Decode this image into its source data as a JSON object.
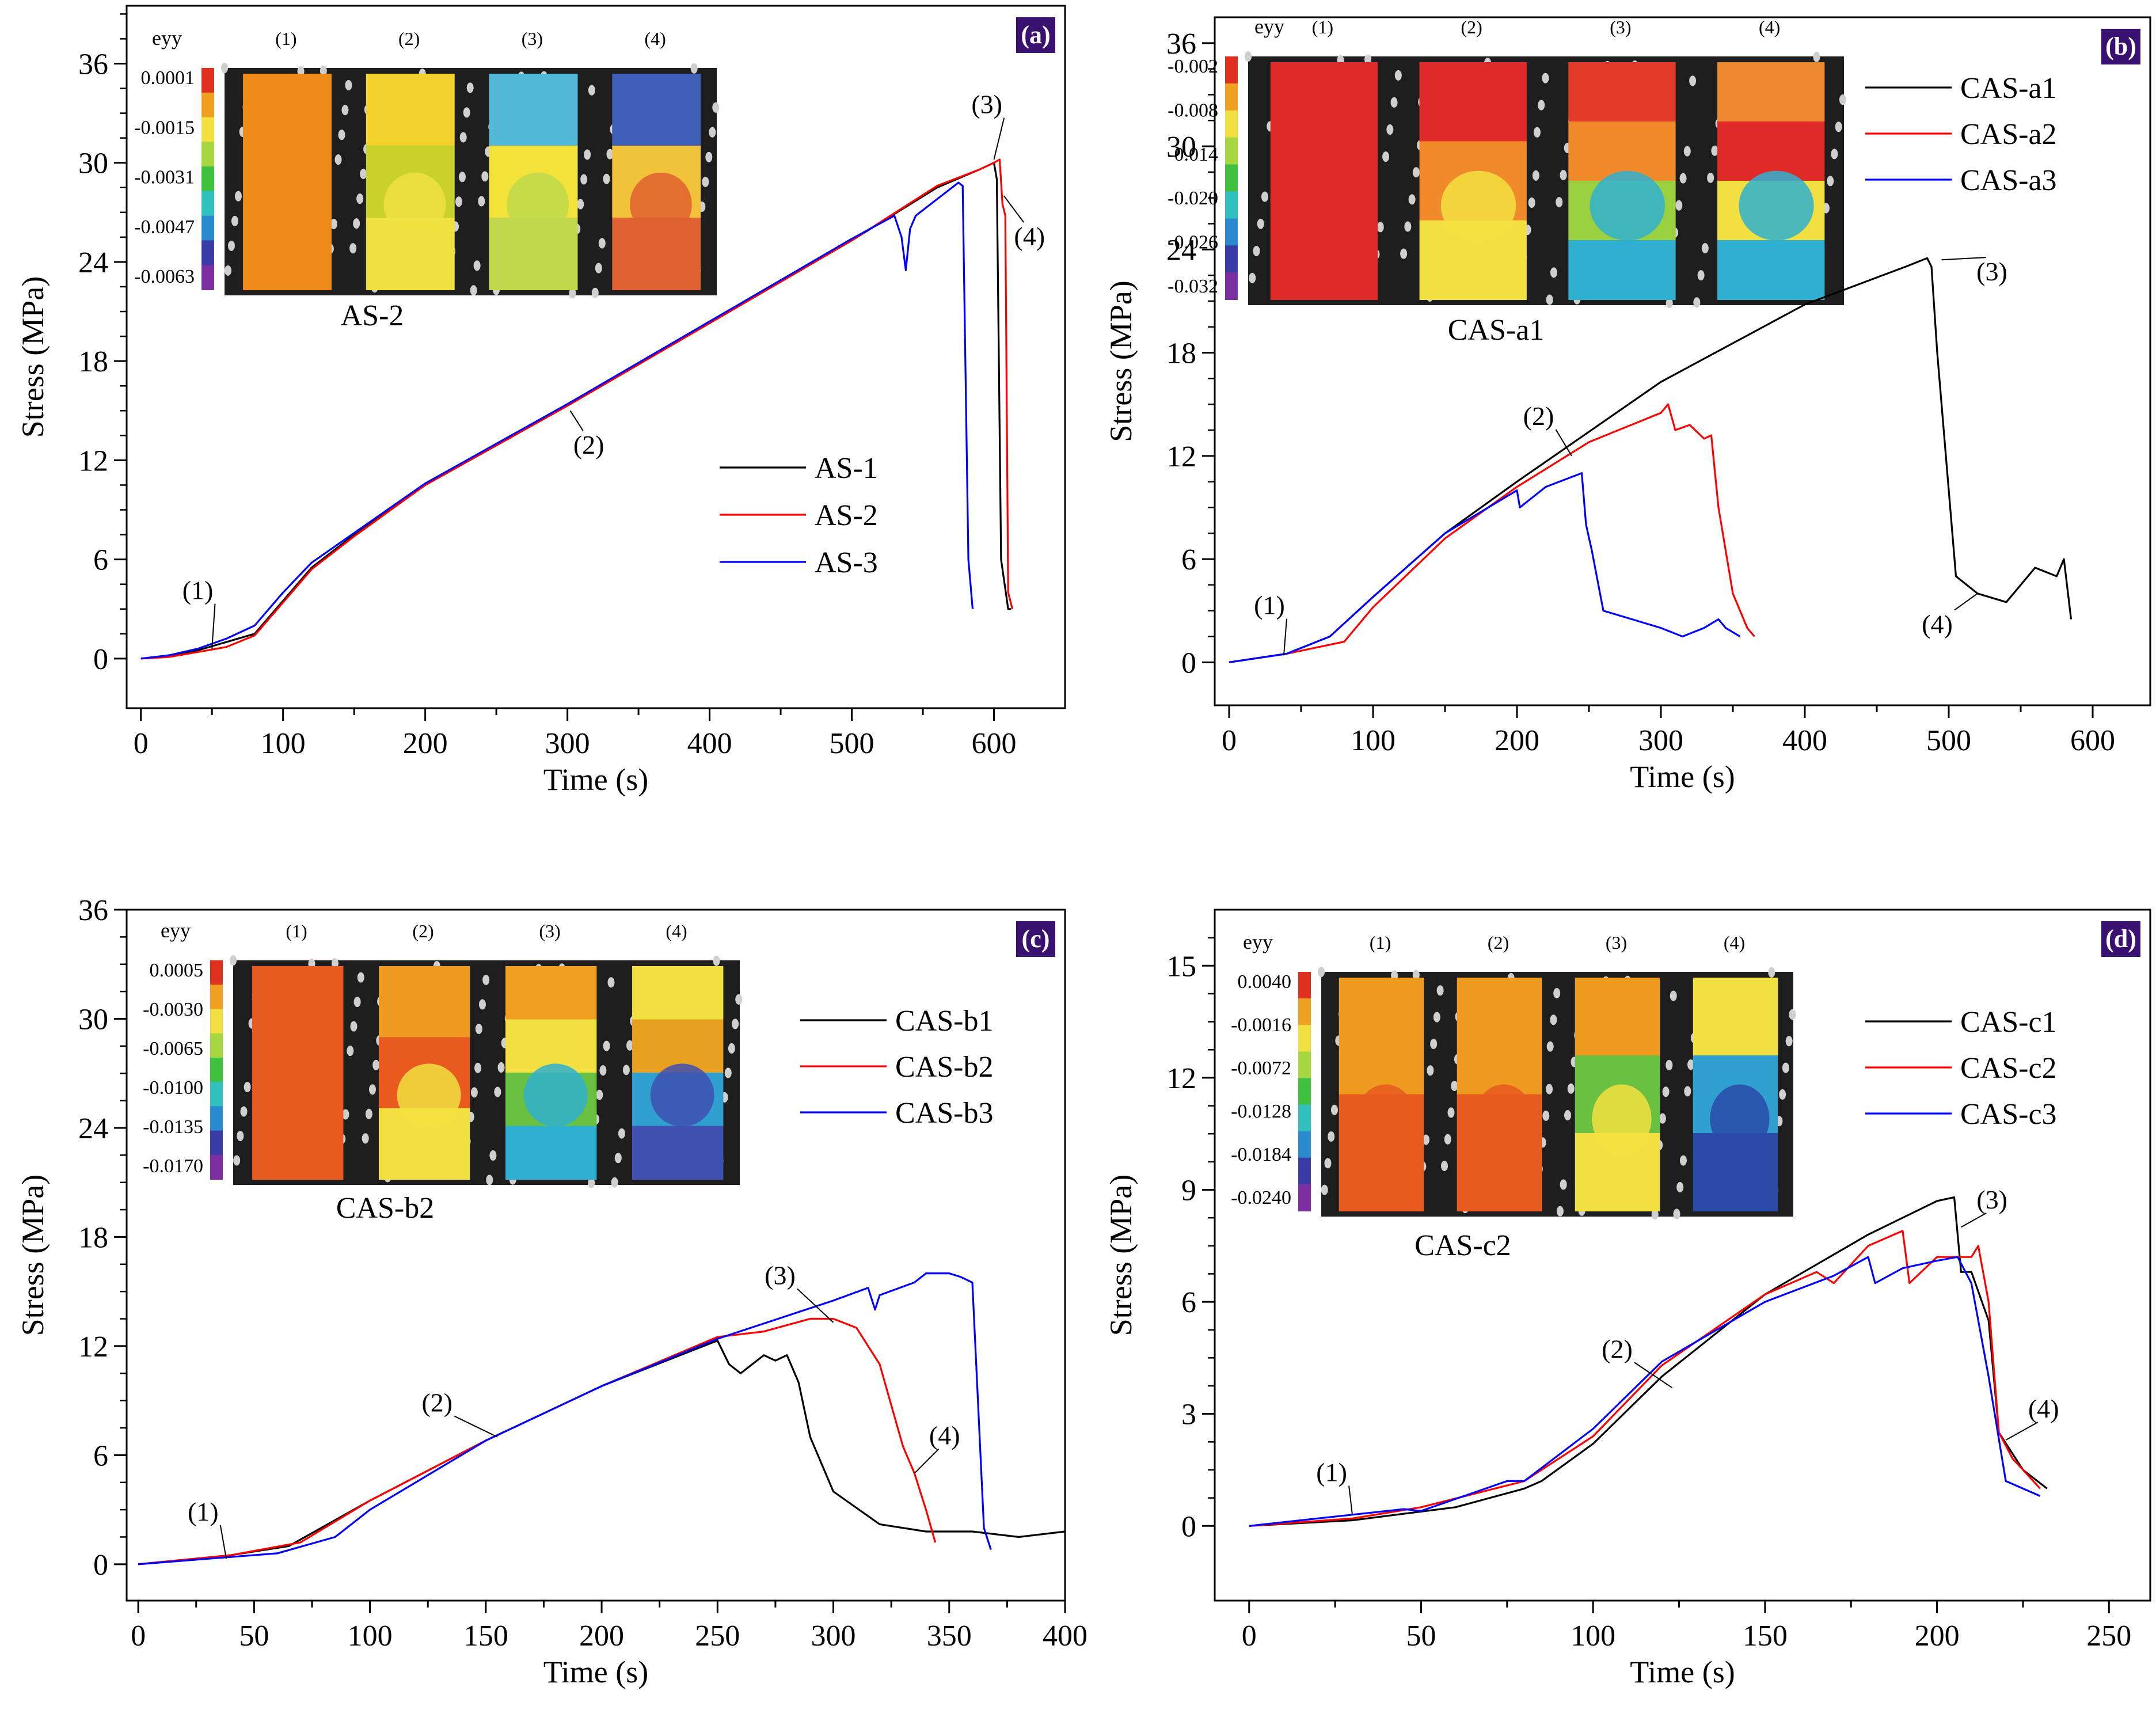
{
  "chart_data": [
    {
      "type": "line",
      "panel_label": "(a)",
      "xlabel": "Time (s)",
      "ylabel": "Stress (MPa)",
      "xlim": [
        -10,
        650
      ],
      "ylim": [
        -3,
        39.5
      ],
      "xticks": [
        0,
        100,
        200,
        300,
        400,
        500,
        600
      ],
      "yticks": [
        0,
        6,
        12,
        18,
        24,
        30,
        36
      ],
      "series": [
        {
          "name": "AS-1",
          "color": "#000000",
          "x": [
            0,
            20,
            40,
            60,
            80,
            100,
            120,
            150,
            200,
            300,
            400,
            500,
            560,
            590,
            600,
            602,
            605,
            610,
            612
          ],
          "y": [
            0,
            0.2,
            0.5,
            1.0,
            1.5,
            3.5,
            5.5,
            7.5,
            10.5,
            15.3,
            20.3,
            25.3,
            28.5,
            29.6,
            30.0,
            29.0,
            6.0,
            3.0,
            3.0
          ]
        },
        {
          "name": "AS-2",
          "color": "#ff0000",
          "x": [
            0,
            20,
            40,
            60,
            80,
            100,
            120,
            150,
            200,
            300,
            400,
            500,
            560,
            590,
            600,
            604,
            606,
            608,
            610,
            613
          ],
          "y": [
            0,
            0.1,
            0.4,
            0.7,
            1.4,
            3.4,
            5.4,
            7.4,
            10.5,
            15.3,
            20.3,
            25.3,
            28.6,
            29.6,
            30.0,
            30.2,
            27.5,
            26.8,
            4.0,
            3.0
          ]
        },
        {
          "name": "AS-3",
          "color": "#0000ff",
          "x": [
            0,
            20,
            40,
            60,
            80,
            100,
            120,
            150,
            200,
            300,
            400,
            500,
            530,
            535,
            538,
            541,
            545,
            560,
            575,
            578,
            582,
            585
          ],
          "y": [
            0,
            0.2,
            0.6,
            1.2,
            2.0,
            4.0,
            5.8,
            7.6,
            10.6,
            15.4,
            20.4,
            25.4,
            26.8,
            25.5,
            23.5,
            26.0,
            26.8,
            27.8,
            28.8,
            28.6,
            6.0,
            3.0
          ]
        }
      ],
      "annotations": [
        {
          "text": "(1)",
          "x": 40,
          "y": 3.6,
          "tx": 50,
          "ty": 0.6
        },
        {
          "text": "(2)",
          "x": 315,
          "y": 12.4,
          "tx": 302,
          "ty": 15.0
        },
        {
          "text": "(3)",
          "x": 595,
          "y": 33.0,
          "tx": 600,
          "ty": 30.2
        },
        {
          "text": "(4)",
          "x": 625,
          "y": 25.0,
          "tx": 607,
          "ty": 28.0
        }
      ],
      "inset": {
        "caption": "AS-2",
        "scale_title": "eyy",
        "scale_values": [
          "0.0001",
          "-0.0015",
          "-0.0031",
          "-0.0047",
          "-0.0063"
        ],
        "stage_labels": [
          "(1)",
          "(2)",
          "(3)",
          "(4)"
        ]
      }
    },
    {
      "type": "line",
      "panel_label": "(b)",
      "xlabel": "Time (s)",
      "ylabel": "Stress (MPa)",
      "xlim": [
        -10,
        640
      ],
      "ylim": [
        -2.5,
        37.5
      ],
      "xticks": [
        0,
        100,
        200,
        300,
        400,
        500,
        600
      ],
      "yticks": [
        0,
        6,
        12,
        18,
        24,
        30,
        36
      ],
      "series": [
        {
          "name": "CAS-a1",
          "color": "#000000",
          "x": [
            0,
            40,
            70,
            100,
            150,
            200,
            300,
            400,
            470,
            485,
            488,
            492,
            500,
            505,
            520,
            540,
            560,
            575,
            580,
            585
          ],
          "y": [
            0,
            0.5,
            1.5,
            3.8,
            7.5,
            10.5,
            16.3,
            20.8,
            23.0,
            23.5,
            23.0,
            18.0,
            10.0,
            5.0,
            4.0,
            3.5,
            5.5,
            5.0,
            6.0,
            2.5
          ]
        },
        {
          "name": "CAS-a2",
          "color": "#ff0000",
          "x": [
            0,
            40,
            80,
            100,
            150,
            200,
            250,
            300,
            305,
            310,
            320,
            330,
            335,
            340,
            350,
            360,
            365
          ],
          "y": [
            0,
            0.5,
            1.2,
            3.2,
            7.2,
            10.2,
            12.8,
            14.5,
            15.0,
            13.5,
            13.8,
            13.0,
            13.2,
            9.0,
            4.0,
            2.0,
            1.5
          ]
        },
        {
          "name": "CAS-a3",
          "color": "#0000ff",
          "x": [
            0,
            40,
            70,
            100,
            150,
            200,
            202,
            220,
            245,
            248,
            252,
            260,
            280,
            300,
            315,
            330,
            340,
            345,
            355
          ],
          "y": [
            0,
            0.5,
            1.5,
            3.8,
            7.5,
            10.0,
            9.0,
            10.2,
            11.0,
            8.0,
            6.5,
            3.0,
            2.5,
            2.0,
            1.5,
            2.0,
            2.5,
            2.0,
            1.5
          ]
        }
      ],
      "annotations": [
        {
          "text": "(1)",
          "x": 28,
          "y": 2.8,
          "tx": 38,
          "ty": 0.4
        },
        {
          "text": "(2)",
          "x": 215,
          "y": 13.8,
          "tx": 238,
          "ty": 12.0
        },
        {
          "text": "(3)",
          "x": 530,
          "y": 22.2,
          "tx": 495,
          "ty": 23.4
        },
        {
          "text": "(4)",
          "x": 492,
          "y": 1.7,
          "tx": 520,
          "ty": 4.0
        }
      ],
      "inset": {
        "caption": "CAS-a1",
        "scale_title": "eyy",
        "scale_values": [
          "-0.002",
          "-0.008",
          "-0.014",
          "-0.020",
          "-0.026",
          "-0.032"
        ],
        "stage_labels": [
          "(1)",
          "(2)",
          "(3)",
          "(4)"
        ]
      }
    },
    {
      "type": "line",
      "panel_label": "(c)",
      "xlabel": "Time (s)",
      "ylabel": "Stress (MPa)",
      "xlim": [
        -5,
        400
      ],
      "ylim": [
        -2.0,
        36
      ],
      "xticks": [
        0,
        50,
        100,
        150,
        200,
        250,
        300,
        350,
        400
      ],
      "yticks": [
        0,
        6,
        12,
        18,
        24,
        30,
        36
      ],
      "series": [
        {
          "name": "CAS-b1",
          "color": "#000000",
          "x": [
            0,
            40,
            65,
            100,
            150,
            200,
            250,
            255,
            260,
            270,
            275,
            280,
            285,
            290,
            300,
            320,
            340,
            360,
            380,
            400
          ],
          "y": [
            0,
            0.5,
            1.0,
            3.5,
            6.8,
            9.8,
            12.3,
            11.0,
            10.5,
            11.5,
            11.2,
            11.5,
            10.0,
            7.0,
            4.0,
            2.2,
            1.8,
            1.8,
            1.5,
            1.8
          ]
        },
        {
          "name": "CAS-b2",
          "color": "#ff0000",
          "x": [
            0,
            40,
            70,
            100,
            150,
            200,
            250,
            270,
            290,
            300,
            310,
            320,
            330,
            335,
            340,
            344
          ],
          "y": [
            0,
            0.5,
            1.2,
            3.5,
            6.8,
            9.8,
            12.5,
            12.8,
            13.5,
            13.5,
            13.0,
            11.0,
            6.5,
            5.0,
            3.0,
            1.2
          ]
        },
        {
          "name": "CAS-b3",
          "color": "#0000ff",
          "x": [
            0,
            40,
            60,
            85,
            100,
            150,
            200,
            250,
            300,
            315,
            318,
            320,
            335,
            340,
            350,
            355,
            360,
            365,
            368
          ],
          "y": [
            0,
            0.4,
            0.6,
            1.5,
            3.0,
            6.8,
            9.8,
            12.4,
            14.5,
            15.2,
            14.0,
            14.8,
            15.5,
            16.0,
            16.0,
            15.8,
            15.5,
            2.0,
            0.8
          ]
        }
      ],
      "annotations": [
        {
          "text": "(1)",
          "x": 28,
          "y": 2.4,
          "tx": 38,
          "ty": 0.3
        },
        {
          "text": "(2)",
          "x": 129,
          "y": 8.4,
          "tx": 155,
          "ty": 7.0
        },
        {
          "text": "(3)",
          "x": 277,
          "y": 15.4,
          "tx": 300,
          "ty": 13.3
        },
        {
          "text": "(4)",
          "x": 348,
          "y": 6.6,
          "tx": 335,
          "ty": 5.0
        }
      ],
      "inset": {
        "caption": "CAS-b2",
        "scale_title": "eyy",
        "scale_values": [
          "0.0005",
          "-0.0030",
          "-0.0065",
          "-0.0100",
          "-0.0135",
          "-0.0170"
        ],
        "stage_labels": [
          "(1)",
          "(2)",
          "(3)",
          "(4)"
        ]
      }
    },
    {
      "type": "line",
      "panel_label": "(d)",
      "xlabel": "Time (s)",
      "ylabel": "Stress (MPa)",
      "xlim": [
        -10,
        262
      ],
      "ylim": [
        -2.0,
        16.5
      ],
      "xticks": [
        0,
        50,
        100,
        150,
        200,
        250
      ],
      "yticks": [
        0,
        3,
        6,
        9,
        12,
        15
      ],
      "series": [
        {
          "name": "CAS-c1",
          "color": "#000000",
          "x": [
            0,
            30,
            60,
            80,
            85,
            100,
            120,
            150,
            180,
            200,
            205,
            207,
            210,
            215,
            218,
            225,
            232
          ],
          "y": [
            0,
            0.15,
            0.5,
            1.0,
            1.2,
            2.2,
            4.0,
            6.2,
            7.8,
            8.7,
            8.8,
            6.8,
            6.8,
            5.5,
            2.5,
            1.5,
            1.0
          ]
        },
        {
          "name": "CAS-c2",
          "color": "#ff0000",
          "x": [
            0,
            30,
            50,
            80,
            100,
            120,
            150,
            165,
            170,
            180,
            190,
            192,
            200,
            210,
            212,
            215,
            218,
            222,
            230
          ],
          "y": [
            0,
            0.2,
            0.5,
            1.2,
            2.4,
            4.3,
            6.2,
            6.8,
            6.5,
            7.5,
            7.9,
            6.5,
            7.2,
            7.2,
            7.5,
            6.0,
            2.5,
            1.8,
            1.0
          ]
        },
        {
          "name": "CAS-c3",
          "color": "#0000ff",
          "x": [
            0,
            30,
            45,
            50,
            75,
            80,
            100,
            120,
            150,
            170,
            180,
            182,
            190,
            200,
            206,
            210,
            215,
            220,
            230
          ],
          "y": [
            0,
            0.3,
            0.45,
            0.4,
            1.2,
            1.2,
            2.6,
            4.4,
            6.0,
            6.7,
            7.2,
            6.5,
            6.9,
            7.1,
            7.2,
            6.5,
            4.0,
            1.2,
            0.8
          ]
        }
      ],
      "annotations": [
        {
          "text": "(1)",
          "x": 24,
          "y": 1.2,
          "tx": 30,
          "ty": 0.3
        },
        {
          "text": "(2)",
          "x": 107,
          "y": 4.5,
          "tx": 123,
          "ty": 3.7
        },
        {
          "text": "(3)",
          "x": 216,
          "y": 8.5,
          "tx": 207,
          "ty": 8.0
        },
        {
          "text": "(4)",
          "x": 231,
          "y": 2.9,
          "tx": 220,
          "ty": 2.3
        }
      ],
      "inset": {
        "caption": "CAS-c2",
        "scale_title": "eyy",
        "scale_values": [
          "0.0040",
          "-0.0016",
          "-0.0072",
          "-0.0128",
          "-0.0184",
          "-0.0240"
        ],
        "stage_labels": [
          "(1)",
          "(2)",
          "(3)",
          "(4)"
        ]
      }
    }
  ]
}
